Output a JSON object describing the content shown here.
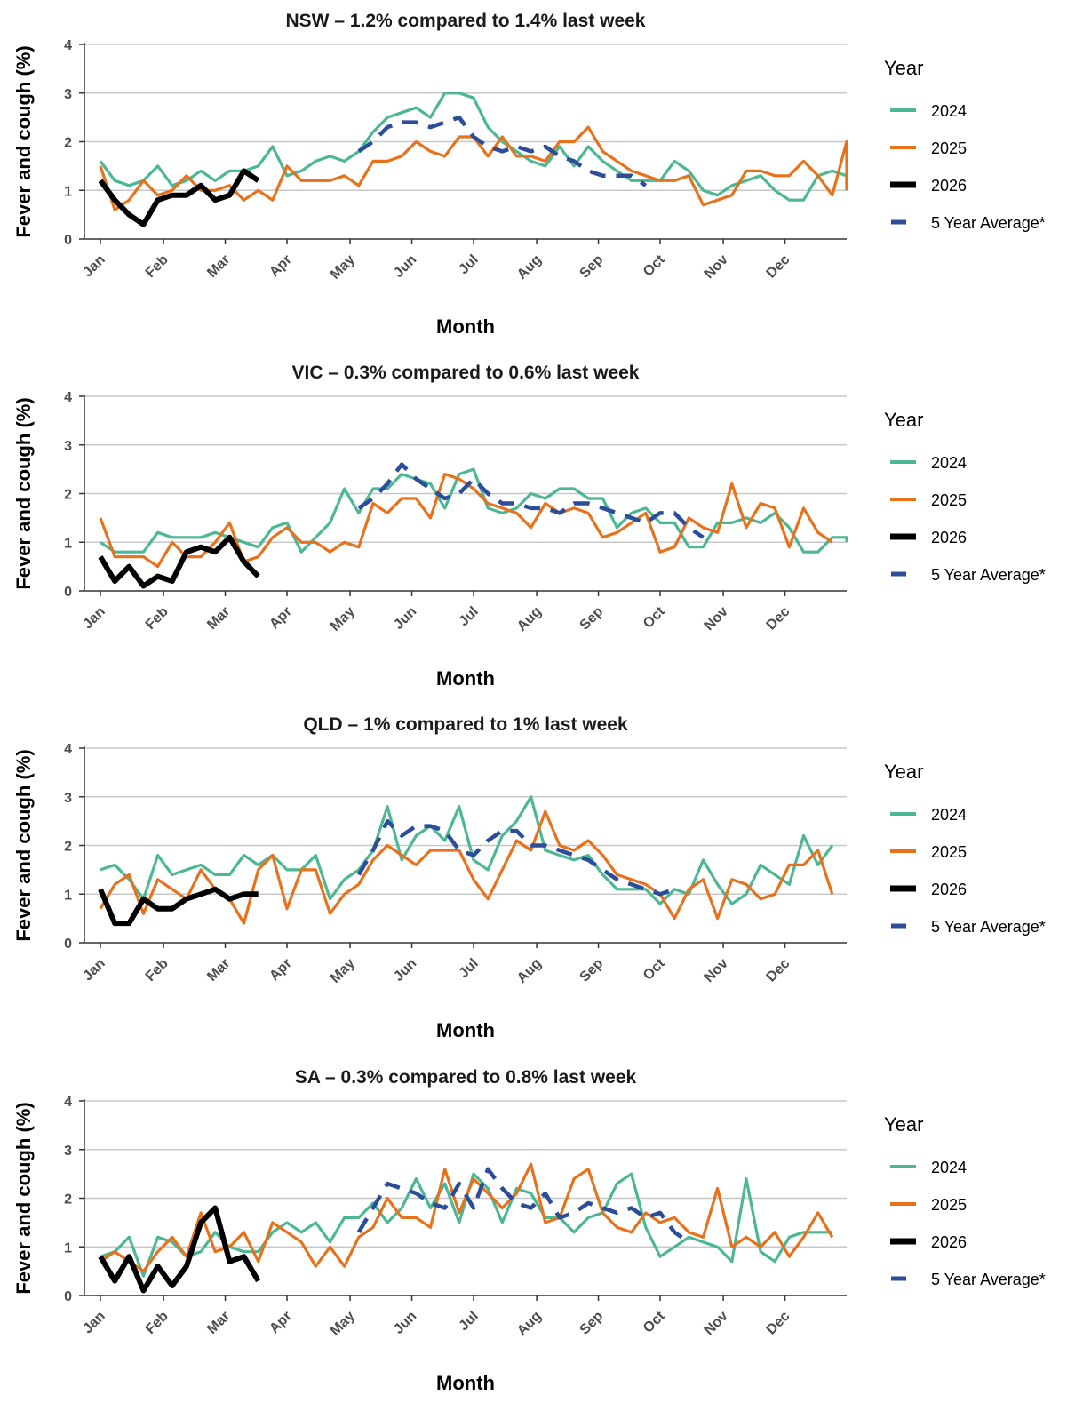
{
  "legend": {
    "title": "Year",
    "items": [
      {
        "label": "2024",
        "color": "#4cb893",
        "style": "solid"
      },
      {
        "label": "2025",
        "color": "#e8711b",
        "style": "solid"
      },
      {
        "label": "2026",
        "color": "#000000",
        "style": "solid"
      },
      {
        "label": "5 Year Average*",
        "color": "#2b4d9a",
        "style": "dashed"
      }
    ]
  },
  "chart_data": [
    {
      "type": "line",
      "title": "NSW – 1.2% compared to 1.4% last week",
      "xlabel": "Month",
      "ylabel": "Fever and cough (%)",
      "ylim": [
        0,
        4
      ],
      "yticks": [
        0,
        1,
        2,
        3,
        4
      ],
      "xlim": [
        1,
        53
      ],
      "month_ticks": {
        "labels": [
          "Jan",
          "Feb",
          "Mar",
          "Apr",
          "May",
          "Jun",
          "Jul",
          "Aug",
          "Sep",
          "Oct",
          "Nov",
          "Dec"
        ],
        "weeks": [
          1,
          5.4,
          9.7,
          14,
          18.4,
          22.7,
          27,
          31.4,
          35.7,
          40,
          44.4,
          48.7
        ]
      },
      "grid": true,
      "legend_position": "right",
      "series": [
        {
          "name": "2024",
          "x_start": 1,
          "values": [
            1.6,
            1.2,
            1.1,
            1.2,
            1.5,
            1.1,
            1.2,
            1.4,
            1.2,
            1.4,
            1.4,
            1.5,
            1.9,
            1.3,
            1.4,
            1.6,
            1.7,
            1.6,
            1.8,
            2.2,
            2.5,
            2.6,
            2.7,
            2.5,
            3.0,
            3.0,
            2.9,
            2.3,
            2.0,
            1.8,
            1.6,
            1.5,
            1.9,
            1.5,
            1.9,
            1.6,
            1.4,
            1.2,
            1.2,
            1.2,
            1.6,
            1.4,
            1.0,
            0.9,
            1.1,
            1.2,
            1.3,
            1.0,
            0.8,
            0.8,
            1.3,
            1.4,
            1.3,
            1.0
          ]
        },
        {
          "name": "2025",
          "x_start": 1,
          "values": [
            1.5,
            0.6,
            0.8,
            1.2,
            0.9,
            1.0,
            1.3,
            1.0,
            1.0,
            1.1,
            0.8,
            1.0,
            0.8,
            1.5,
            1.2,
            1.2,
            1.2,
            1.3,
            1.1,
            1.6,
            1.6,
            1.7,
            2.0,
            1.8,
            1.7,
            2.1,
            2.1,
            1.7,
            2.1,
            1.7,
            1.7,
            1.6,
            2.0,
            2.0,
            2.3,
            1.8,
            1.6,
            1.4,
            1.3,
            1.2,
            1.2,
            1.3,
            0.7,
            0.8,
            0.9,
            1.4,
            1.4,
            1.3,
            1.3,
            1.6,
            1.3,
            0.9,
            2.0,
            1.0
          ]
        },
        {
          "name": "2026",
          "x_start": 1,
          "values": [
            1.2,
            0.8,
            0.5,
            0.3,
            0.8,
            0.9,
            0.9,
            1.1,
            0.8,
            0.9,
            1.4,
            1.2
          ]
        },
        {
          "name": "5 Year Average*",
          "x_start": 19,
          "values": [
            1.8,
            2.0,
            2.3,
            2.4,
            2.4,
            2.3,
            2.4,
            2.5,
            2.1,
            1.9,
            1.8,
            1.9,
            1.8,
            1.9,
            1.7,
            1.6,
            1.4,
            1.3,
            1.3,
            1.3,
            1.1
          ]
        }
      ]
    },
    {
      "type": "line",
      "title": "VIC – 0.3% compared to 0.6% last week",
      "xlabel": "Month",
      "ylabel": "Fever and cough (%)",
      "ylim": [
        0,
        4
      ],
      "yticks": [
        0,
        1,
        2,
        3,
        4
      ],
      "xlim": [
        1,
        53
      ],
      "month_ticks": {
        "labels": [
          "Jan",
          "Feb",
          "Mar",
          "Apr",
          "May",
          "Jun",
          "Jul",
          "Aug",
          "Sep",
          "Oct",
          "Nov",
          "Dec"
        ],
        "weeks": [
          1,
          5.4,
          9.7,
          14,
          18.4,
          22.7,
          27,
          31.4,
          35.7,
          40,
          44.4,
          48.7
        ]
      },
      "grid": true,
      "legend_position": "right",
      "series": [
        {
          "name": "2024",
          "x_start": 1,
          "values": [
            1.0,
            0.8,
            0.8,
            0.8,
            1.2,
            1.1,
            1.1,
            1.1,
            1.2,
            1.1,
            1.0,
            0.9,
            1.3,
            1.4,
            0.8,
            1.1,
            1.4,
            2.1,
            1.6,
            2.1,
            2.1,
            2.4,
            2.3,
            2.2,
            1.7,
            2.4,
            2.5,
            1.7,
            1.6,
            1.7,
            2.0,
            1.9,
            2.1,
            2.1,
            1.9,
            1.9,
            1.3,
            1.6,
            1.7,
            1.4,
            1.4,
            0.9,
            0.9,
            1.4,
            1.4,
            1.5,
            1.4,
            1.6,
            1.3,
            0.8,
            0.8,
            1.1,
            1.1,
            1.0
          ]
        },
        {
          "name": "2025",
          "x_start": 1,
          "values": [
            1.5,
            0.7,
            0.7,
            0.7,
            0.5,
            1.0,
            0.7,
            0.7,
            1.0,
            1.4,
            0.6,
            0.7,
            1.1,
            1.3,
            1.0,
            1.0,
            0.8,
            1.0,
            0.9,
            1.8,
            1.6,
            1.9,
            1.9,
            1.5,
            2.4,
            2.3,
            2.1,
            1.8,
            1.7,
            1.6,
            1.3,
            1.8,
            1.6,
            1.7,
            1.6,
            1.1,
            1.2,
            1.4,
            1.6,
            0.8,
            0.9,
            1.5,
            1.3,
            1.2,
            2.2,
            1.3,
            1.8,
            1.7,
            0.9,
            1.7,
            1.2,
            1.0
          ]
        },
        {
          "name": "2026",
          "x_start": 1,
          "values": [
            0.7,
            0.2,
            0.5,
            0.1,
            0.3,
            0.2,
            0.8,
            0.9,
            0.8,
            1.1,
            0.6,
            0.3
          ]
        },
        {
          "name": "5 Year Average*",
          "x_start": 19,
          "values": [
            1.7,
            1.9,
            2.2,
            2.6,
            2.3,
            2.1,
            1.9,
            2.0,
            2.3,
            2.0,
            1.8,
            1.8,
            1.7,
            1.7,
            1.6,
            1.8,
            1.8,
            1.7,
            1.6,
            1.5,
            1.4,
            1.6,
            1.6,
            1.3,
            1.1
          ]
        }
      ]
    },
    {
      "type": "line",
      "title": "QLD – 1% compared to 1% last week",
      "xlabel": "Month",
      "ylabel": "Fever and cough (%)",
      "ylim": [
        0,
        4
      ],
      "yticks": [
        0,
        1,
        2,
        3,
        4
      ],
      "xlim": [
        1,
        53
      ],
      "month_ticks": {
        "labels": [
          "Jan",
          "Feb",
          "Mar",
          "Apr",
          "May",
          "Jun",
          "Jul",
          "Aug",
          "Sep",
          "Oct",
          "Nov",
          "Dec"
        ],
        "weeks": [
          1,
          5.4,
          9.7,
          14,
          18.4,
          22.7,
          27,
          31.4,
          35.7,
          40,
          44.4,
          48.7
        ]
      },
      "grid": true,
      "legend_position": "right",
      "series": [
        {
          "name": "2024",
          "x_start": 1,
          "values": [
            1.5,
            1.6,
            1.3,
            0.9,
            1.8,
            1.4,
            1.5,
            1.6,
            1.4,
            1.4,
            1.8,
            1.6,
            1.8,
            1.5,
            1.5,
            1.8,
            0.9,
            1.3,
            1.5,
            1.9,
            2.8,
            1.7,
            2.2,
            2.4,
            2.1,
            2.8,
            1.7,
            1.5,
            2.2,
            2.5,
            3.0,
            1.9,
            1.8,
            1.7,
            1.8,
            1.4,
            1.1,
            1.1,
            1.1,
            0.8,
            1.1,
            1.0,
            1.7,
            1.2,
            0.8,
            1.0,
            1.6,
            1.4,
            1.2,
            2.2,
            1.6,
            2.0
          ]
        },
        {
          "name": "2025",
          "x_start": 1,
          "values": [
            0.7,
            1.2,
            1.4,
            0.6,
            1.3,
            1.1,
            0.9,
            1.5,
            1.1,
            0.9,
            0.4,
            1.5,
            1.8,
            0.7,
            1.5,
            1.5,
            0.6,
            1.0,
            1.2,
            1.7,
            2.0,
            1.8,
            1.6,
            1.9,
            1.9,
            1.9,
            1.3,
            0.9,
            1.5,
            2.1,
            1.9,
            2.7,
            2.0,
            1.9,
            2.1,
            1.8,
            1.4,
            1.3,
            1.2,
            1.0,
            0.5,
            1.1,
            1.3,
            0.5,
            1.3,
            1.2,
            0.9,
            1.0,
            1.6,
            1.6,
            1.9,
            1.0
          ]
        },
        {
          "name": "2026",
          "x_start": 1,
          "values": [
            1.1,
            0.4,
            0.4,
            0.9,
            0.7,
            0.7,
            0.9,
            1.0,
            1.1,
            0.9,
            1.0,
            1.0
          ]
        },
        {
          "name": "5 Year Average*",
          "x_start": 19,
          "values": [
            1.4,
            1.9,
            2.5,
            2.2,
            2.4,
            2.4,
            2.3,
            1.9,
            1.8,
            2.1,
            2.3,
            2.3,
            2.0,
            2.0,
            1.9,
            1.8,
            1.7,
            1.5,
            1.3,
            1.2,
            1.1,
            1.0,
            1.1
          ]
        }
      ]
    },
    {
      "type": "line",
      "title": "SA – 0.3% compared to 0.8% last week",
      "xlabel": "Month",
      "ylabel": "Fever and cough (%)",
      "ylim": [
        0,
        4
      ],
      "yticks": [
        0,
        1,
        2,
        3,
        4
      ],
      "xlim": [
        1,
        53
      ],
      "month_ticks": {
        "labels": [
          "Jan",
          "Feb",
          "Mar",
          "Apr",
          "May",
          "Jun",
          "Jul",
          "Aug",
          "Sep",
          "Oct",
          "Nov",
          "Dec"
        ],
        "weeks": [
          1,
          5.4,
          9.7,
          14,
          18.4,
          22.7,
          27,
          31.4,
          35.7,
          40,
          44.4,
          48.7
        ]
      },
      "grid": true,
      "legend_position": "right",
      "series": [
        {
          "name": "2024",
          "x_start": 1,
          "values": [
            0.8,
            0.9,
            1.2,
            0.4,
            1.2,
            1.1,
            0.8,
            0.9,
            1.3,
            1.0,
            0.9,
            0.9,
            1.3,
            1.5,
            1.3,
            1.5,
            1.1,
            1.6,
            1.6,
            1.9,
            1.5,
            1.8,
            2.4,
            1.8,
            2.3,
            1.5,
            2.5,
            2.2,
            1.5,
            2.2,
            2.1,
            1.6,
            1.6,
            1.3,
            1.6,
            1.7,
            2.3,
            2.5,
            1.4,
            0.8,
            1.0,
            1.2,
            1.1,
            1.0,
            0.7,
            2.4,
            0.9,
            0.7,
            1.2,
            1.3,
            1.3,
            1.3
          ]
        },
        {
          "name": "2025",
          "x_start": 1,
          "values": [
            0.7,
            0.9,
            0.7,
            0.5,
            0.9,
            1.2,
            0.8,
            1.7,
            0.9,
            1.0,
            1.3,
            0.7,
            1.5,
            1.3,
            1.1,
            0.6,
            1.0,
            0.6,
            1.2,
            1.4,
            2.0,
            1.6,
            1.6,
            1.4,
            2.6,
            1.7,
            2.4,
            2.1,
            1.8,
            2.1,
            2.7,
            1.5,
            1.6,
            2.4,
            2.6,
            1.7,
            1.4,
            1.3,
            1.7,
            1.5,
            1.6,
            1.3,
            1.2,
            2.2,
            1.0,
            1.2,
            1.0,
            1.3,
            0.8,
            1.2,
            1.7,
            1.2
          ]
        },
        {
          "name": "2026",
          "x_start": 1,
          "values": [
            0.8,
            0.3,
            0.8,
            0.1,
            0.6,
            0.2,
            0.6,
            1.5,
            1.8,
            0.7,
            0.8,
            0.3
          ]
        },
        {
          "name": "5 Year Average*",
          "x_start": 19,
          "values": [
            1.3,
            1.8,
            2.3,
            2.2,
            2.1,
            1.9,
            1.8,
            2.3,
            1.8,
            2.6,
            2.2,
            1.9,
            1.8,
            2.1,
            1.6,
            1.7,
            1.9,
            1.8,
            1.7,
            1.8,
            1.6,
            1.7,
            1.3,
            1.1
          ]
        }
      ]
    }
  ]
}
